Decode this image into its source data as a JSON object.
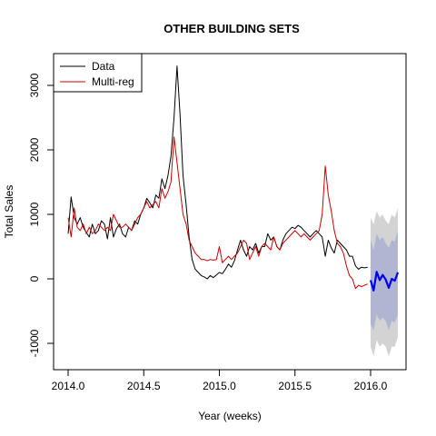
{
  "chart_data": {
    "type": "line",
    "title": "OTHER BUILDING SETS",
    "xlabel": "Year (weeks)",
    "ylabel": "Total Sales",
    "xlim": [
      1997.2,
      2016.26
    ],
    "ylim": [
      -1410,
      3400
    ],
    "x_tick_values": [
      2014.0,
      2014.5,
      2015.0,
      2015.5,
      2016.0
    ],
    "x_ticks": [
      "2014.0",
      "2014.5",
      "2015.0",
      "2015.5",
      "2016.0"
    ],
    "y_tick_values": [
      -1000,
      0,
      1000,
      2000,
      3000
    ],
    "y_ticks": [
      "-1000",
      "0",
      "1000",
      "2000",
      "3000"
    ],
    "grid": false,
    "legend": {
      "position": "top-left",
      "entries": [
        {
          "label": "Data",
          "color": "#000000"
        },
        {
          "label": "Multi-reg",
          "color": "#cc0000"
        }
      ]
    },
    "series": [
      {
        "name": "Data",
        "color": "#000000",
        "x": [
          2014.0,
          2014.02,
          2014.04,
          2014.06,
          2014.08,
          2014.1,
          2014.12,
          2014.14,
          2014.16,
          2014.18,
          2014.2,
          2014.22,
          2014.24,
          2014.26,
          2014.28,
          2014.3,
          2014.32,
          2014.34,
          2014.36,
          2014.38,
          2014.4,
          2014.42,
          2014.44,
          2014.46,
          2014.48,
          2014.5,
          2014.52,
          2014.54,
          2014.56,
          2014.58,
          2014.6,
          2014.62,
          2014.64,
          2014.66,
          2014.68,
          2014.7,
          2014.72,
          2014.74,
          2014.76,
          2014.78,
          2014.8,
          2014.82,
          2014.84,
          2014.86,
          2014.88,
          2014.9,
          2014.92,
          2014.94,
          2014.96,
          2014.98,
          2015.0,
          2015.02,
          2015.04,
          2015.06,
          2015.08,
          2015.1,
          2015.12,
          2015.14,
          2015.16,
          2015.18,
          2015.2,
          2015.22,
          2015.24,
          2015.26,
          2015.28,
          2015.3,
          2015.32,
          2015.34,
          2015.36,
          2015.38,
          2015.4,
          2015.42,
          2015.44,
          2015.46,
          2015.48,
          2015.5,
          2015.52,
          2015.54,
          2015.56,
          2015.58,
          2015.6,
          2015.62,
          2015.64,
          2015.66,
          2015.68,
          2015.7,
          2015.72,
          2015.74,
          2015.76,
          2015.78,
          2015.8,
          2015.82,
          2015.84,
          2015.86,
          2015.88,
          2015.9,
          2015.92,
          2015.94,
          2015.96,
          2015.98
        ],
        "values": [
          700,
          1270,
          950,
          850,
          950,
          800,
          720,
          650,
          850,
          700,
          750,
          900,
          850,
          620,
          950,
          650,
          780,
          850,
          700,
          650,
          800,
          750,
          900,
          850,
          1000,
          1100,
          1250,
          1180,
          1100,
          1300,
          1250,
          1550,
          1400,
          1600,
          1900,
          2500,
          3300,
          2550,
          1600,
          1150,
          650,
          300,
          150,
          100,
          50,
          30,
          0,
          50,
          20,
          60,
          100,
          80,
          150,
          230,
          180,
          280,
          450,
          600,
          450,
          350,
          500,
          450,
          550,
          400,
          500,
          500,
          700,
          600,
          650,
          500,
          450,
          600,
          700,
          750,
          800,
          780,
          830,
          800,
          750,
          700,
          650,
          700,
          750,
          700,
          650,
          350,
          600,
          480,
          400,
          600,
          550,
          500,
          450,
          350,
          350,
          200,
          150,
          180,
          170,
          180
        ]
      },
      {
        "name": "Multi-reg",
        "color": "#cc0000",
        "x": [
          2014.0,
          2014.02,
          2014.04,
          2014.06,
          2014.08,
          2014.1,
          2014.12,
          2014.14,
          2014.16,
          2014.18,
          2014.2,
          2014.22,
          2014.24,
          2014.26,
          2014.28,
          2014.3,
          2014.32,
          2014.34,
          2014.36,
          2014.38,
          2014.4,
          2014.42,
          2014.44,
          2014.46,
          2014.48,
          2014.5,
          2014.52,
          2014.54,
          2014.56,
          2014.58,
          2014.6,
          2014.62,
          2014.64,
          2014.66,
          2014.68,
          2014.7,
          2014.72,
          2014.74,
          2014.76,
          2014.78,
          2014.8,
          2014.82,
          2014.84,
          2014.86,
          2014.88,
          2014.9,
          2014.92,
          2014.94,
          2014.96,
          2014.98,
          2015.0,
          2015.02,
          2015.04,
          2015.06,
          2015.08,
          2015.1,
          2015.12,
          2015.14,
          2015.16,
          2015.18,
          2015.2,
          2015.22,
          2015.24,
          2015.26,
          2015.28,
          2015.3,
          2015.32,
          2015.34,
          2015.36,
          2015.38,
          2015.4,
          2015.42,
          2015.44,
          2015.46,
          2015.48,
          2015.5,
          2015.52,
          2015.54,
          2015.56,
          2015.58,
          2015.6,
          2015.62,
          2015.64,
          2015.66,
          2015.68,
          2015.7,
          2015.72,
          2015.74,
          2015.76,
          2015.78,
          2015.8,
          2015.82,
          2015.84,
          2015.86,
          2015.88,
          2015.9,
          2015.92,
          2015.94,
          2015.96,
          2015.98
        ],
        "values": [
          950,
          650,
          1100,
          800,
          750,
          850,
          700,
          800,
          700,
          750,
          850,
          800,
          750,
          800,
          750,
          1000,
          900,
          800,
          800,
          850,
          800,
          750,
          850,
          950,
          1000,
          1100,
          1200,
          1100,
          1150,
          1200,
          1100,
          1400,
          1250,
          1350,
          1500,
          2200,
          1800,
          1400,
          1000,
          850,
          600,
          500,
          400,
          350,
          300,
          300,
          280,
          300,
          290,
          300,
          500,
          250,
          300,
          350,
          300,
          350,
          400,
          500,
          600,
          550,
          300,
          400,
          500,
          350,
          500,
          550,
          500,
          450,
          650,
          500,
          450,
          550,
          600,
          650,
          700,
          750,
          700,
          650,
          700,
          650,
          600,
          650,
          700,
          750,
          1000,
          1750,
          1300,
          1050,
          750,
          550,
          500,
          400,
          200,
          50,
          0,
          -150,
          -100,
          -120,
          -100,
          -80
        ]
      },
      {
        "name": "Forecast",
        "color": "#0000ee",
        "x": [
          2016.0,
          2016.02,
          2016.04,
          2016.06,
          2016.08,
          2016.1,
          2016.12,
          2016.14,
          2016.16,
          2016.18
        ],
        "values": [
          -20,
          -180,
          110,
          -20,
          60,
          -10,
          -140,
          0,
          -30,
          100
        ]
      }
    ],
    "prediction_bands": [
      {
        "name": "95% interval",
        "color": "#d3d3d3",
        "x": [
          2016.0,
          2016.02,
          2016.04,
          2016.06,
          2016.08,
          2016.1,
          2016.12,
          2016.14,
          2016.16,
          2016.18
        ],
        "upper": [
          950,
          850,
          1050,
          950,
          1000,
          900,
          850,
          1000,
          950,
          1100
        ],
        "lower": [
          -1050,
          -1200,
          -950,
          -1050,
          -1000,
          -1050,
          -1200,
          -1050,
          -1050,
          -900
        ]
      },
      {
        "name": "80% interval",
        "color": "#b0b5d1",
        "x": [
          2016.0,
          2016.02,
          2016.04,
          2016.06,
          2016.08,
          2016.1,
          2016.12,
          2016.14,
          2016.16,
          2016.18
        ],
        "upper": [
          600,
          450,
          700,
          600,
          650,
          550,
          480,
          600,
          580,
          750
        ],
        "lower": [
          -700,
          -800,
          -550,
          -650,
          -600,
          -650,
          -800,
          -650,
          -680,
          -550
        ]
      }
    ]
  }
}
